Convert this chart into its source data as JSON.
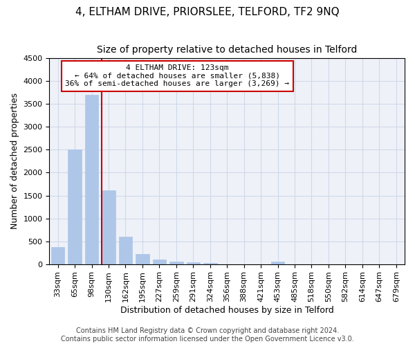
{
  "title": "4, ELTHAM DRIVE, PRIORSLEE, TELFORD, TF2 9NQ",
  "subtitle": "Size of property relative to detached houses in Telford",
  "xlabel": "Distribution of detached houses by size in Telford",
  "ylabel": "Number of detached properties",
  "categories": [
    "33sqm",
    "65sqm",
    "98sqm",
    "130sqm",
    "162sqm",
    "195sqm",
    "227sqm",
    "259sqm",
    "291sqm",
    "324sqm",
    "356sqm",
    "388sqm",
    "421sqm",
    "453sqm",
    "485sqm",
    "518sqm",
    "550sqm",
    "582sqm",
    "614sqm",
    "647sqm",
    "679sqm"
  ],
  "values": [
    370,
    2500,
    3700,
    1620,
    600,
    220,
    100,
    60,
    45,
    30,
    0,
    0,
    0,
    50,
    0,
    0,
    0,
    0,
    0,
    0,
    0
  ],
  "bar_color": "#aec6e8",
  "bar_edge_color": "#aec6e8",
  "vline_x_index": 3,
  "vline_color": "#cc0000",
  "annotation_box_text": "4 ELTHAM DRIVE: 123sqm\n← 64% of detached houses are smaller (5,838)\n36% of semi-detached houses are larger (3,269) →",
  "annotation_box_facecolor": "white",
  "annotation_box_edgecolor": "#cc0000",
  "ylim": [
    0,
    4500
  ],
  "yticks": [
    0,
    500,
    1000,
    1500,
    2000,
    2500,
    3000,
    3500,
    4000,
    4500
  ],
  "grid_color": "#d0d8e8",
  "background_color": "#eef2f8",
  "footer_text": "Contains HM Land Registry data © Crown copyright and database right 2024.\nContains public sector information licensed under the Open Government Licence v3.0.",
  "title_fontsize": 11,
  "subtitle_fontsize": 10,
  "xlabel_fontsize": 9,
  "ylabel_fontsize": 9,
  "tick_fontsize": 8,
  "annotation_fontsize": 8,
  "footer_fontsize": 7
}
